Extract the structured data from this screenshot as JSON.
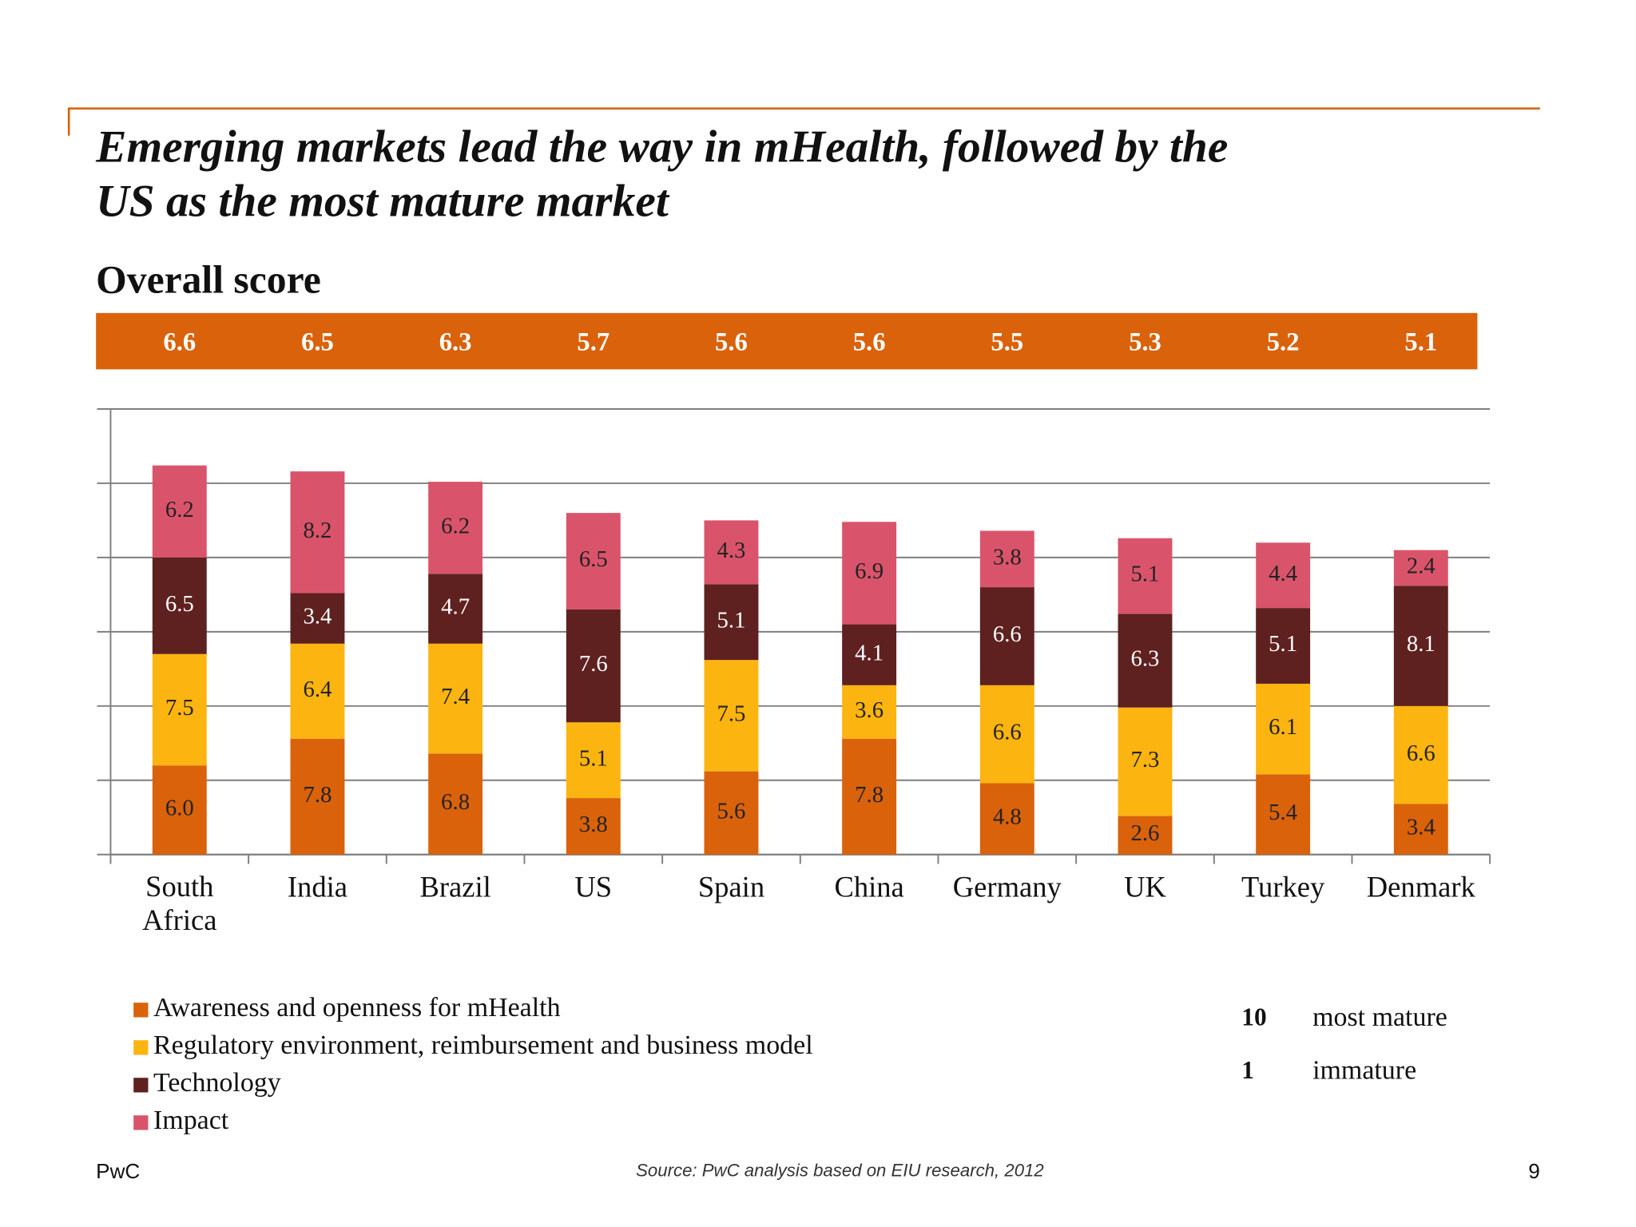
{
  "chart_data": {
    "type": "stacked_bar",
    "title": "Emerging markets lead the way in mHealth, followed by the US as the most mature market",
    "subtitle": "Overall score",
    "categories": [
      "South Africa",
      "India",
      "Brazil",
      "US",
      "Spain",
      "China",
      "Germany",
      "UK",
      "Turkey",
      "Denmark"
    ],
    "overall_scores": [
      6.6,
      6.5,
      6.3,
      5.7,
      5.6,
      5.6,
      5.5,
      5.3,
      5.2,
      5.1
    ],
    "overall_color": "#d9620b",
    "series": [
      {
        "name": "Awareness and openness for mHealth",
        "color": "#d9620b",
        "label_color": "#222222",
        "values": [
          6.0,
          7.8,
          6.8,
          3.8,
          5.6,
          7.8,
          4.8,
          2.6,
          5.4,
          3.4
        ],
        "value_labels": [
          "6.0",
          "7.8",
          "6.8",
          "3.8",
          "5.6",
          "7.8",
          "4.8",
          "2.6",
          "5.4",
          "3.4"
        ]
      },
      {
        "name": "Regulatory environment, reimbursement and business model",
        "color": "#fcb410",
        "label_color": "#222222",
        "values": [
          7.5,
          6.4,
          7.4,
          5.1,
          7.5,
          3.6,
          6.6,
          7.3,
          6.1,
          6.6
        ]
      },
      {
        "name": "Technology",
        "color": "#5e2120",
        "label_color": "#ffffff",
        "values": [
          6.5,
          3.4,
          4.7,
          7.6,
          5.1,
          4.1,
          6.6,
          6.3,
          5.1,
          8.1
        ]
      },
      {
        "name": "Impact",
        "color": "#d9546b",
        "label_color": "#222222",
        "values": [
          6.2,
          8.2,
          6.2,
          6.5,
          4.3,
          6.9,
          3.8,
          5.1,
          4.4,
          2.4
        ]
      }
    ],
    "ylim": [
      0,
      30
    ],
    "yticks": [
      0,
      5,
      10,
      15,
      20,
      25,
      30
    ],
    "grid": true,
    "scale_key": [
      {
        "value": 10,
        "label": "most mature"
      },
      {
        "value": 1,
        "label": "immature"
      }
    ],
    "footer": {
      "brand": "PwC",
      "source": "Source: PwC analysis based on EIU research, 2012",
      "page": "9"
    }
  }
}
